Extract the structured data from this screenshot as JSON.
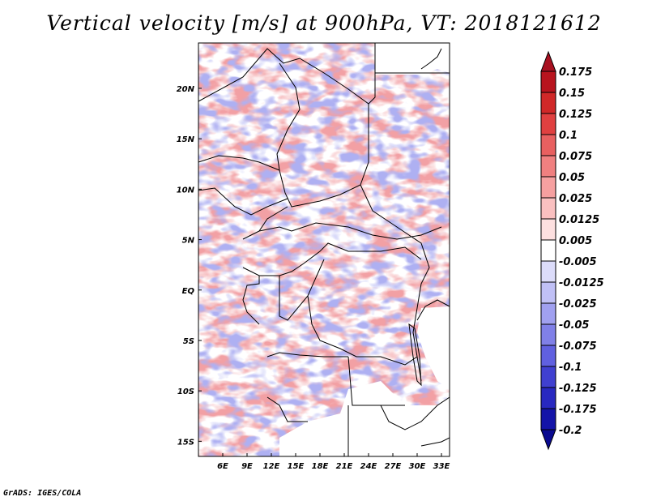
{
  "title": "Vertical velocity [m/s] at 900hPa, VT: 2018121612",
  "credit": "GrADS: IGES/COLA",
  "map": {
    "lon_range": [
      3,
      34
    ],
    "lat_range": [
      -16.5,
      24.5
    ],
    "lon_ticks": [
      {
        "value": 6,
        "label": "6E"
      },
      {
        "value": 9,
        "label": "9E"
      },
      {
        "value": 12,
        "label": "12E"
      },
      {
        "value": 15,
        "label": "15E"
      },
      {
        "value": 18,
        "label": "18E"
      },
      {
        "value": 21,
        "label": "21E"
      },
      {
        "value": 24,
        "label": "24E"
      },
      {
        "value": 27,
        "label": "27E"
      },
      {
        "value": 30,
        "label": "30E"
      },
      {
        "value": 33,
        "label": "33E"
      }
    ],
    "lat_ticks": [
      {
        "value": 20,
        "label": "20N"
      },
      {
        "value": 15,
        "label": "15N"
      },
      {
        "value": 10,
        "label": "10N"
      },
      {
        "value": 5,
        "label": "5N"
      },
      {
        "value": 0,
        "label": "EQ"
      },
      {
        "value": -5,
        "label": "5S"
      },
      {
        "value": -10,
        "label": "10S"
      },
      {
        "value": -15,
        "label": "15S"
      }
    ]
  },
  "colorbar": {
    "labels": [
      "0.175",
      "0.15",
      "0.125",
      "0.1",
      "0.075",
      "0.05",
      "0.025",
      "0.0125",
      "0.005",
      "-0.005",
      "-0.0125",
      "-0.025",
      "-0.05",
      "-0.075",
      "-0.1",
      "-0.125",
      "-0.175",
      "-0.2"
    ],
    "colors": [
      "#a81020",
      "#b8141e",
      "#d02828",
      "#e04040",
      "#e86060",
      "#f08080",
      "#f6a0a0",
      "#fac0c0",
      "#fde0e0",
      "#ffffff",
      "#dcdcfa",
      "#c0c0f6",
      "#a0a0f0",
      "#8080e8",
      "#6060e0",
      "#4040d0",
      "#2828c0",
      "#1414a8",
      "#0a0a90"
    ]
  }
}
